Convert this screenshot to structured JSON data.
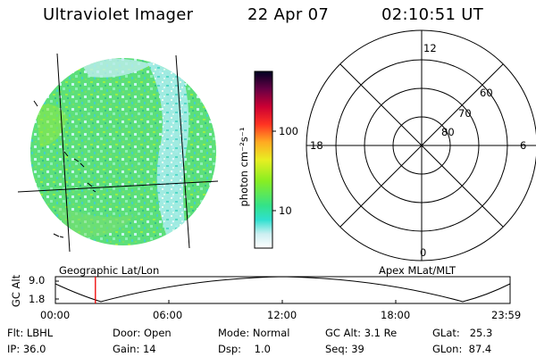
{
  "header": {
    "title": "Ultraviolet Imager",
    "date": "22 Apr 07",
    "time": "02:10:51 UT"
  },
  "geo_panel": {
    "caption": "Geographic Lat/Lon"
  },
  "apex_panel": {
    "caption": "Apex MLat/MLT",
    "mlt_labels": {
      "top": "12",
      "left": "18",
      "right": "6",
      "bottom": "0"
    },
    "lat_labels": [
      "80",
      "70",
      "60"
    ]
  },
  "colorbar": {
    "unit_label": "photon cm⁻²s⁻¹",
    "tick_labels": [
      "100",
      "10"
    ],
    "scale": "log",
    "colors": [
      "#ffffff",
      "#bfeef0",
      "#22dfd0",
      "#33e07a",
      "#88ee22",
      "#eeee22",
      "#ff9922",
      "#ff2222",
      "#cc0033",
      "#660044",
      "#000022"
    ]
  },
  "timeline": {
    "ylabel": "GC Alt",
    "y_ticks": [
      "9.0",
      "1.8"
    ],
    "x_ticks": [
      "00:00",
      "06:00",
      "12:00",
      "18:00",
      "23:59"
    ],
    "current_time_fraction": 0.088,
    "marker_color": "#ee0000"
  },
  "info": {
    "flt": "Flt: LBHL",
    "ip": "IP: 36.0",
    "door": "Door: Open",
    "gain": "Gain: 14",
    "mode": "Mode: Normal",
    "dsp": "Dsp:    1.0",
    "gcalt": "GC Alt: 3.1 Re",
    "seq": "Seq: 39",
    "glat": "GLat:   25.3",
    "glon": "GLon:  87.4"
  }
}
